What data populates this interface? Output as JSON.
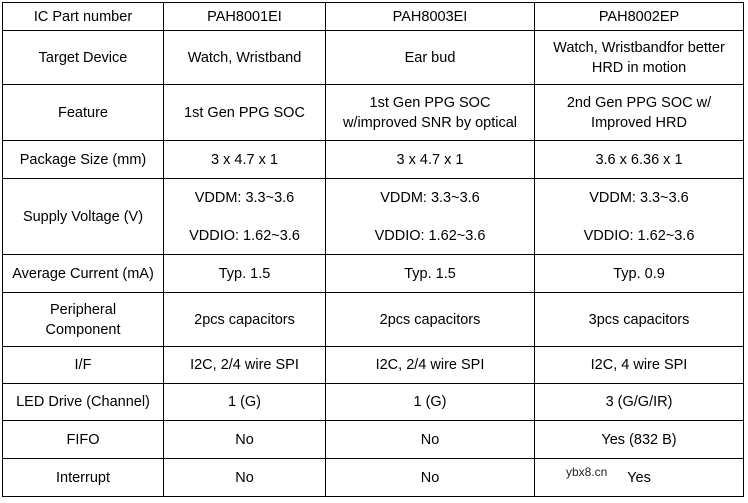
{
  "watermark": "ybx8.cn",
  "rows": [
    {
      "id": "ic-part-number",
      "label": "IC Part number",
      "cells": [
        [
          "PAH8001EI"
        ],
        [
          "PAH8003EI"
        ],
        [
          "PAH8002EP"
        ]
      ]
    },
    {
      "id": "target-device",
      "label": "Target Device",
      "cells": [
        [
          "Watch, Wristband"
        ],
        [
          "Ear bud"
        ],
        [
          "Watch, Wristbandfor better",
          "HRD in motion"
        ]
      ]
    },
    {
      "id": "feature",
      "label": "Feature",
      "cells": [
        [
          "1st Gen PPG SOC"
        ],
        [
          "1st Gen PPG SOC",
          "w/improved SNR by optical"
        ],
        [
          "2nd Gen PPG SOC  w/",
          "Improved HRD"
        ]
      ]
    },
    {
      "id": "package-size",
      "label": "Package Size (mm)",
      "cells": [
        [
          "3 x 4.7 x 1"
        ],
        [
          "3 x 4.7 x 1"
        ],
        [
          "3.6 x 6.36 x 1"
        ]
      ]
    },
    {
      "id": "supply-voltage",
      "label": "Supply Voltage (V)",
      "cells": [
        [
          "VDDM: 3.3~3.6",
          "VDDIO: 1.62~3.6"
        ],
        [
          "VDDM: 3.3~3.6",
          "VDDIO: 1.62~3.6"
        ],
        [
          "VDDM: 3.3~3.6",
          "VDDIO: 1.62~3.6"
        ]
      ]
    },
    {
      "id": "average-current",
      "label": "Average Current (mA)",
      "cells": [
        [
          "Typ. 1.5"
        ],
        [
          "Typ. 1.5"
        ],
        [
          "Typ. 0.9"
        ]
      ]
    },
    {
      "id": "peripheral-component",
      "label": "Peripheral\nComponent",
      "cells": [
        [
          "2pcs capacitors"
        ],
        [
          "2pcs capacitors"
        ],
        [
          "3pcs capacitors"
        ]
      ]
    },
    {
      "id": "interface",
      "label": "I/F",
      "cells": [
        [
          "I2C, 2/4 wire SPI"
        ],
        [
          "I2C, 2/4 wire SPI"
        ],
        [
          "I2C, 4 wire SPI"
        ]
      ]
    },
    {
      "id": "led-drive",
      "label": "LED Drive (Channel)",
      "cells": [
        [
          "1 (G)"
        ],
        [
          "1 (G)"
        ],
        [
          "3 (G/G/IR)"
        ]
      ]
    },
    {
      "id": "fifo",
      "label": "FIFO",
      "cells": [
        [
          "No"
        ],
        [
          "No"
        ],
        [
          "Yes (832 B)"
        ]
      ]
    },
    {
      "id": "interrupt",
      "label": "Interrupt",
      "cells": [
        [
          "No"
        ],
        [
          "No"
        ],
        [
          "Yes"
        ]
      ]
    }
  ]
}
